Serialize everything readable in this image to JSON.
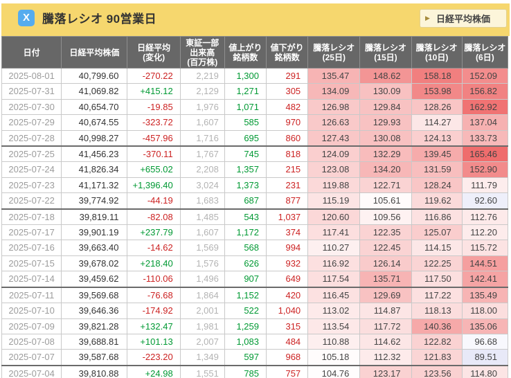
{
  "header": {
    "x_icon_label": "X",
    "title": "騰落レシオ 90営業日",
    "button_arrow": "▶",
    "button_label": "日経平均株価"
  },
  "colors": {
    "titlebar_bg": "#F6D76E",
    "x_icon_bg": "#55ACEE",
    "button_bg": "#FCF5DA",
    "header_bg": "#676767",
    "positive": "#009933",
    "negative": "#CC2222",
    "ratio_high": "#EF6C6C",
    "ratio_low": "#747CD6"
  },
  "table": {
    "columns": [
      {
        "key": "date",
        "label_lines": [
          "日付"
        ]
      },
      {
        "key": "price",
        "label_lines": [
          "日経平均株価"
        ]
      },
      {
        "key": "change",
        "label_lines": [
          "日経平均",
          "(変化)"
        ]
      },
      {
        "key": "volume",
        "label_lines": [
          "東証一部",
          "出来高",
          "(百万株)"
        ]
      },
      {
        "key": "adv",
        "label_lines": [
          "値上がり",
          "銘柄数"
        ]
      },
      {
        "key": "dec",
        "label_lines": [
          "値下がり",
          "銘柄数"
        ]
      },
      {
        "key": "r25",
        "label_lines": [
          "騰落レシオ",
          "(25日)"
        ]
      },
      {
        "key": "r15",
        "label_lines": [
          "騰落レシオ",
          "(15日)"
        ]
      },
      {
        "key": "r10",
        "label_lines": [
          "騰落レシオ",
          "(10日)"
        ]
      },
      {
        "key": "r6",
        "label_lines": [
          "騰落レシオ",
          "(6日)"
        ]
      }
    ],
    "rows": [
      {
        "date": "2025-08-01",
        "price": "40,799.60",
        "change": "-270.22",
        "volume": "2,219",
        "adv": "1,300",
        "dec": "291",
        "r25": 135.47,
        "r15": 148.62,
        "r10": 158.18,
        "r6": 152.09,
        "week_end": false
      },
      {
        "date": "2025-07-31",
        "price": "41,069.82",
        "change": "+415.12",
        "volume": "2,129",
        "adv": "1,271",
        "dec": "305",
        "r25": 134.09,
        "r15": 130.09,
        "r10": 153.98,
        "r6": 156.82,
        "week_end": false
      },
      {
        "date": "2025-07-30",
        "price": "40,654.70",
        "change": "-19.85",
        "volume": "1,976",
        "adv": "1,071",
        "dec": "482",
        "r25": 126.98,
        "r15": 129.84,
        "r10": 128.26,
        "r6": 162.92,
        "week_end": false
      },
      {
        "date": "2025-07-29",
        "price": "40,674.55",
        "change": "-323.72",
        "volume": "1,607",
        "adv": "585",
        "dec": "970",
        "r25": 126.63,
        "r15": 129.93,
        "r10": 114.27,
        "r6": 137.04,
        "week_end": false
      },
      {
        "date": "2025-07-28",
        "price": "40,998.27",
        "change": "-457.96",
        "volume": "1,716",
        "adv": "695",
        "dec": "860",
        "r25": 127.43,
        "r15": 130.08,
        "r10": 124.13,
        "r6": 133.73,
        "week_end": true
      },
      {
        "date": "2025-07-25",
        "price": "41,456.23",
        "change": "-370.11",
        "volume": "1,767",
        "adv": "745",
        "dec": "818",
        "r25": 124.09,
        "r15": 132.29,
        "r10": 139.45,
        "r6": 165.46,
        "week_end": false
      },
      {
        "date": "2025-07-24",
        "price": "41,826.34",
        "change": "+655.02",
        "volume": "2,208",
        "adv": "1,357",
        "dec": "215",
        "r25": 123.08,
        "r15": 134.2,
        "r10": 131.59,
        "r6": 152.9,
        "week_end": false
      },
      {
        "date": "2025-07-23",
        "price": "41,171.32",
        "change": "+1,396.40",
        "volume": "3,024",
        "adv": "1,373",
        "dec": "231",
        "r25": 119.88,
        "r15": 122.71,
        "r10": 128.24,
        "r6": 111.79,
        "week_end": false
      },
      {
        "date": "2025-07-22",
        "price": "39,774.92",
        "change": "-44.19",
        "volume": "1,683",
        "adv": "687",
        "dec": "877",
        "r25": 115.19,
        "r15": 105.61,
        "r10": 119.62,
        "r6": 92.6,
        "week_end": true
      },
      {
        "date": "2025-07-18",
        "price": "39,819.11",
        "change": "-82.08",
        "volume": "1,485",
        "adv": "543",
        "dec": "1,037",
        "r25": 120.6,
        "r15": 109.56,
        "r10": 116.86,
        "r6": 112.76,
        "week_end": false
      },
      {
        "date": "2025-07-17",
        "price": "39,901.19",
        "change": "+237.79",
        "volume": "1,607",
        "adv": "1,172",
        "dec": "374",
        "r25": 117.41,
        "r15": 122.35,
        "r10": 125.07,
        "r6": 112.2,
        "week_end": false
      },
      {
        "date": "2025-07-16",
        "price": "39,663.40",
        "change": "-14.62",
        "volume": "1,569",
        "adv": "568",
        "dec": "994",
        "r25": 110.27,
        "r15": 122.45,
        "r10": 114.15,
        "r6": 115.72,
        "week_end": false
      },
      {
        "date": "2025-07-15",
        "price": "39,678.02",
        "change": "+218.40",
        "volume": "1,576",
        "adv": "626",
        "dec": "932",
        "r25": 116.92,
        "r15": 126.14,
        "r10": 122.25,
        "r6": 144.51,
        "week_end": false
      },
      {
        "date": "2025-07-14",
        "price": "39,459.62",
        "change": "-110.06",
        "volume": "1,496",
        "adv": "907",
        "dec": "649",
        "r25": 117.54,
        "r15": 135.71,
        "r10": 117.5,
        "r6": 142.41,
        "week_end": true
      },
      {
        "date": "2025-07-11",
        "price": "39,569.68",
        "change": "-76.68",
        "volume": "1,864",
        "adv": "1,152",
        "dec": "420",
        "r25": 116.45,
        "r15": 129.69,
        "r10": 117.22,
        "r6": 135.49,
        "week_end": false
      },
      {
        "date": "2025-07-10",
        "price": "39,646.36",
        "change": "-174.92",
        "volume": "2,001",
        "adv": "522",
        "dec": "1,040",
        "r25": 113.02,
        "r15": 114.87,
        "r10": 118.13,
        "r6": 118.0,
        "week_end": false
      },
      {
        "date": "2025-07-09",
        "price": "39,821.28",
        "change": "+132.47",
        "volume": "1,981",
        "adv": "1,259",
        "dec": "315",
        "r25": 113.54,
        "r15": 117.72,
        "r10": 140.36,
        "r6": 135.06,
        "week_end": false
      },
      {
        "date": "2025-07-08",
        "price": "39,688.81",
        "change": "+101.13",
        "volume": "2,007",
        "adv": "1,083",
        "dec": "484",
        "r25": 110.88,
        "r15": 114.62,
        "r10": 122.82,
        "r6": 96.68,
        "week_end": false
      },
      {
        "date": "2025-07-07",
        "price": "39,587.68",
        "change": "-223.20",
        "volume": "1,349",
        "adv": "597",
        "dec": "968",
        "r25": 105.18,
        "r15": 112.32,
        "r10": 121.83,
        "r6": 89.51,
        "week_end": true
      },
      {
        "date": "2025-07-04",
        "price": "39,810.88",
        "change": "+24.98",
        "volume": "1,551",
        "adv": "785",
        "dec": "757",
        "r25": 104.76,
        "r15": 123.17,
        "r10": 123.56,
        "r6": 114.8,
        "week_end": false
      }
    ]
  }
}
